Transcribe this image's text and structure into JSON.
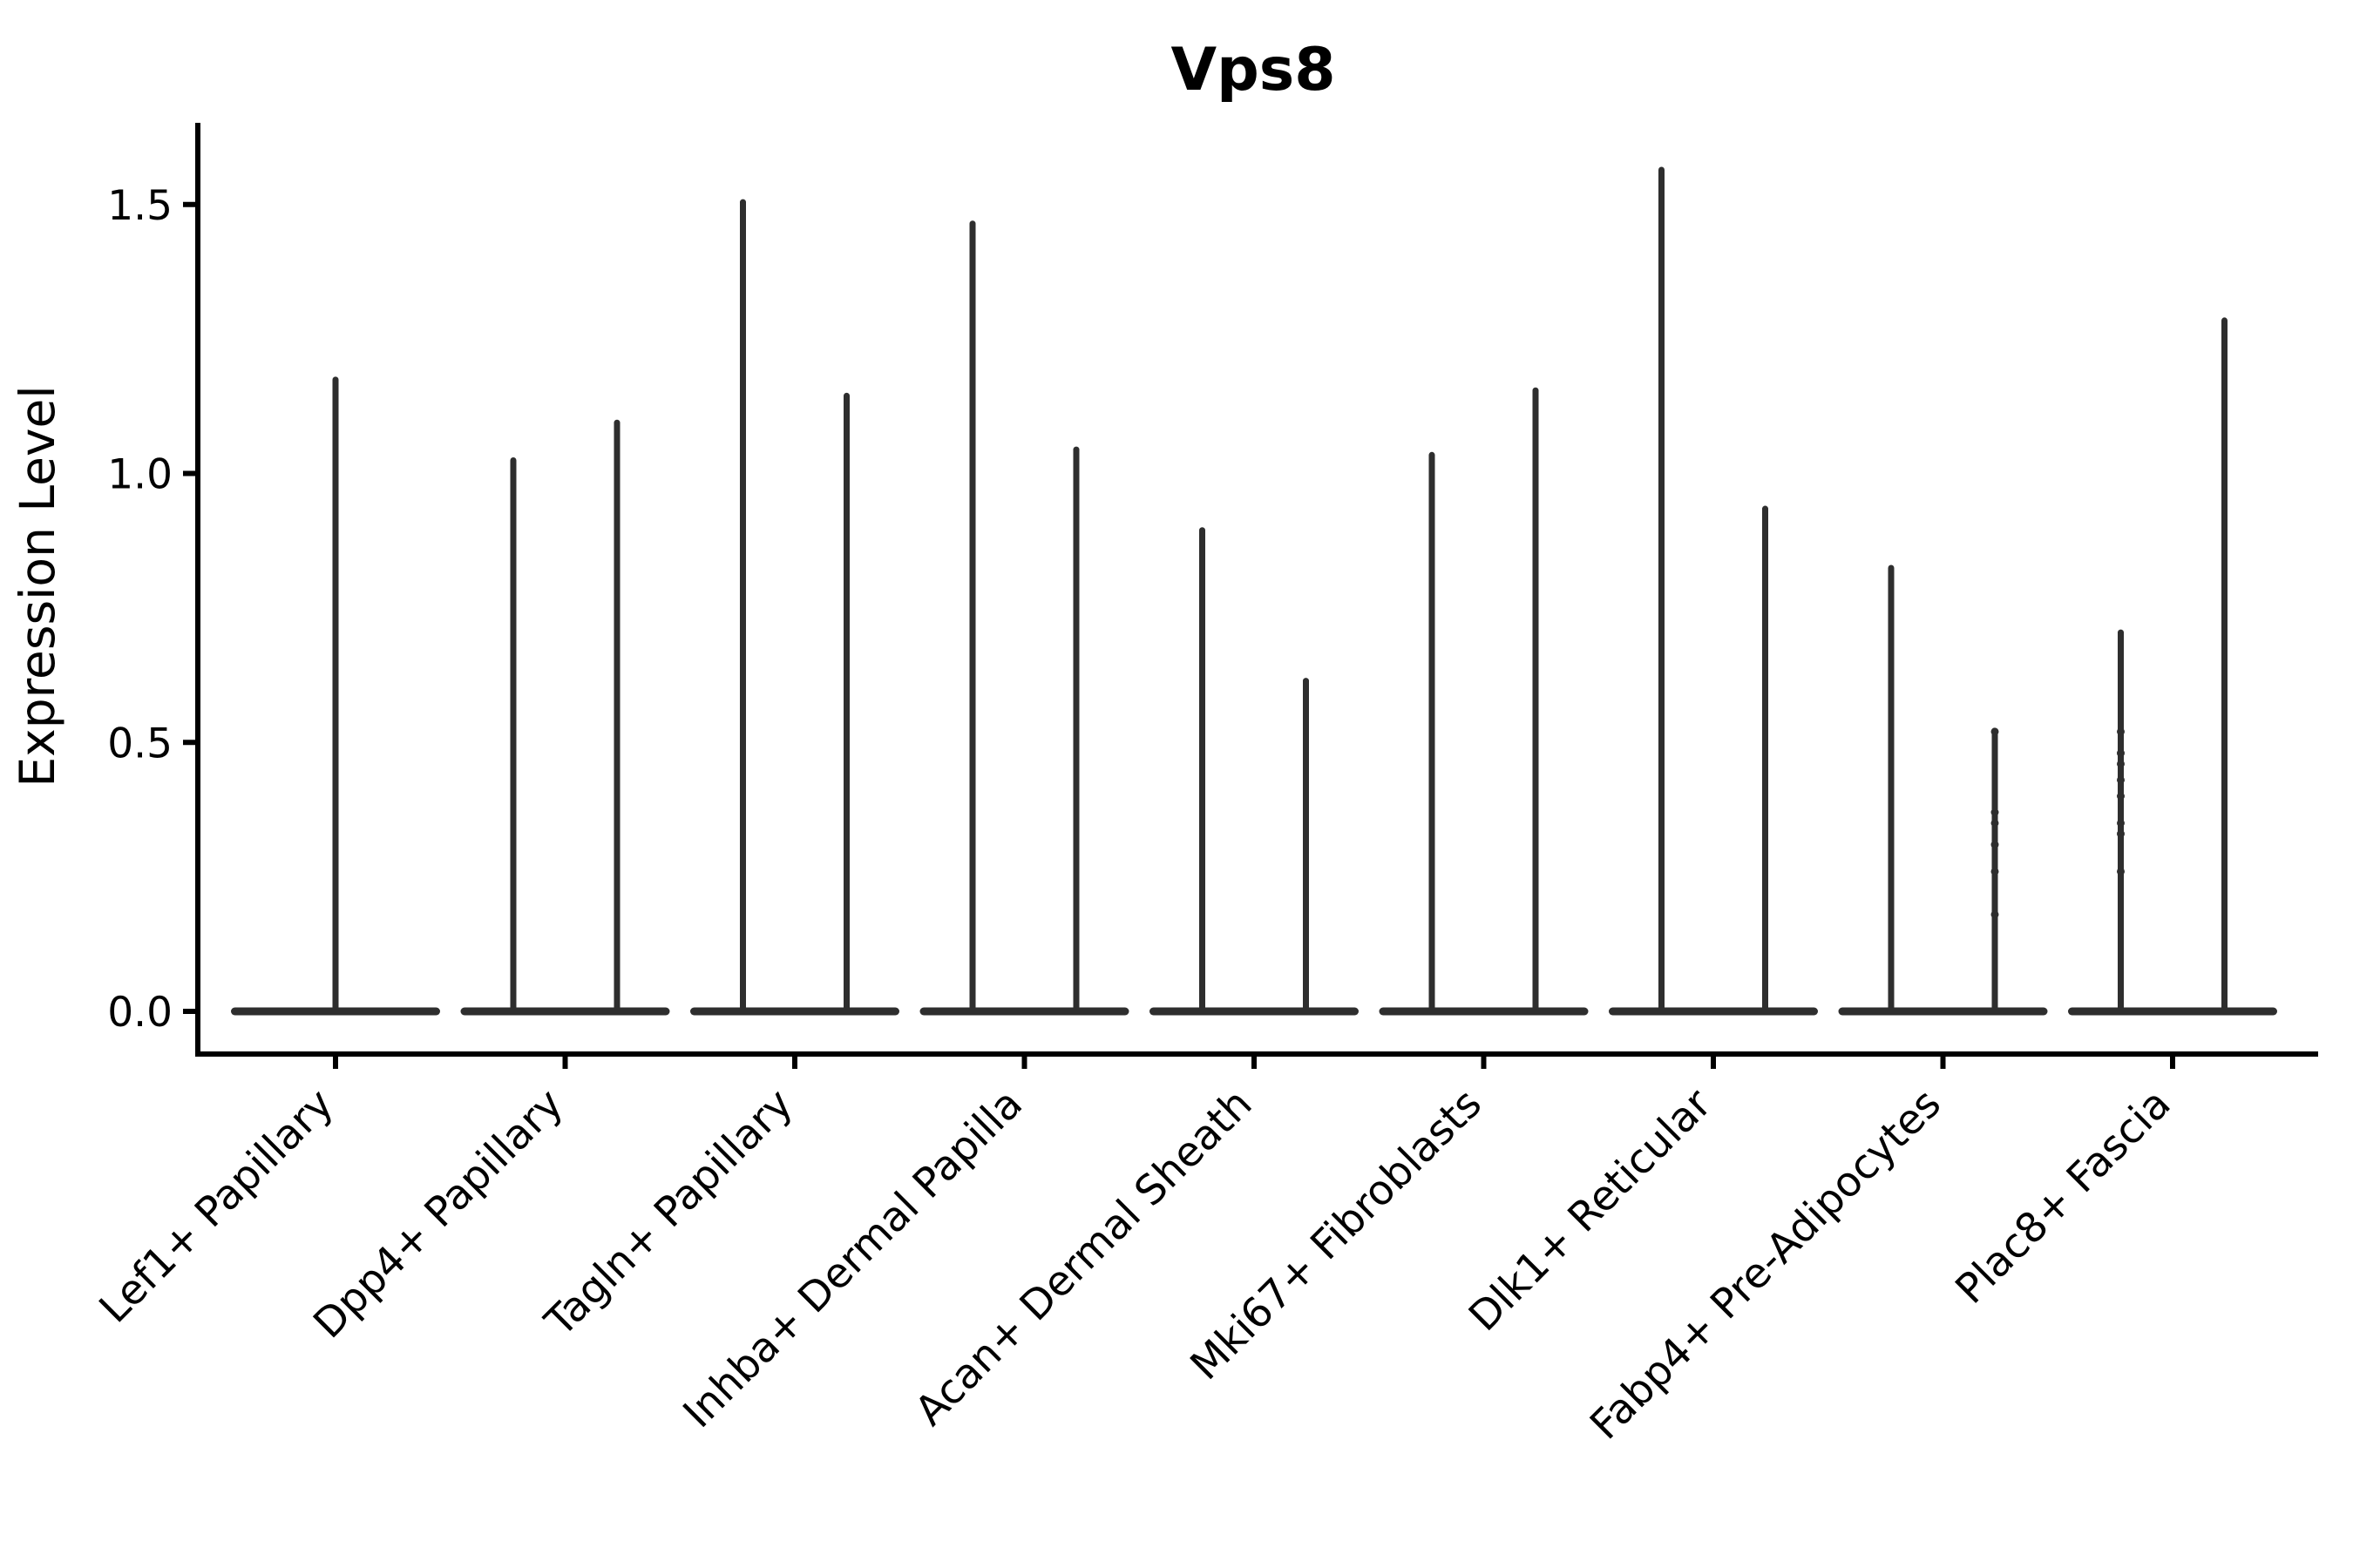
{
  "chart_data": {
    "type": "violin",
    "title": "Vps8",
    "xlabel": "",
    "ylabel": "Expression Level",
    "yticks": [
      0.0,
      0.5,
      1.0,
      1.5
    ],
    "ylim": [
      -0.08,
      1.65
    ],
    "grid": false,
    "legend": "none",
    "violin_color": "#2e2e2e",
    "categories": [
      "Lef1+ Papillary",
      "Dpp4+ Papillary",
      "Tagln+ Papillary",
      "Inhba+ Dermal Papilla",
      "Acan+ Dermal Sheath",
      "Mki67+ Fibroblasts",
      "Dlk1+ Reticular",
      "Fabp4+ Pre-Adipocytes",
      "Plac8+ Fascia"
    ],
    "violins": [
      {
        "category": "Lef1+ Papillary",
        "spikes": [
          {
            "side": "center",
            "max": 1.18
          }
        ]
      },
      {
        "category": "Dpp4+ Papillary",
        "spikes": [
          {
            "side": "left",
            "max": 1.03
          },
          {
            "side": "right",
            "max": 1.1
          }
        ]
      },
      {
        "category": "Tagln+ Papillary",
        "spikes": [
          {
            "side": "left",
            "max": 1.51
          },
          {
            "side": "right",
            "max": 1.15
          }
        ]
      },
      {
        "category": "Inhba+ Dermal Papilla",
        "spikes": [
          {
            "side": "left",
            "max": 1.47
          },
          {
            "side": "right",
            "max": 1.05
          }
        ]
      },
      {
        "category": "Acan+ Dermal Sheath",
        "spikes": [
          {
            "side": "left",
            "max": 0.9
          },
          {
            "side": "right",
            "max": 0.62
          }
        ]
      },
      {
        "category": "Mki67+ Fibroblasts",
        "spikes": [
          {
            "side": "left",
            "max": 1.04
          },
          {
            "side": "right",
            "max": 1.16
          }
        ]
      },
      {
        "category": "Dlk1+ Reticular",
        "spikes": [
          {
            "side": "left",
            "max": 1.57
          },
          {
            "side": "right",
            "max": 0.94
          }
        ]
      },
      {
        "category": "Fabp4+ Pre-Adipocytes",
        "spikes": [
          {
            "side": "left",
            "max": 0.83
          },
          {
            "side": "right",
            "max": 0.52,
            "points": [
              0.52,
              0.37,
              0.35,
              0.31,
              0.26,
              0.18
            ]
          }
        ]
      },
      {
        "category": "Plac8+ Fascia",
        "spikes": [
          {
            "side": "left",
            "max": 0.71,
            "points": [
              0.52,
              0.48,
              0.46,
              0.43,
              0.4,
              0.35,
              0.33,
              0.26
            ]
          },
          {
            "side": "right",
            "max": 1.29
          }
        ]
      }
    ]
  }
}
